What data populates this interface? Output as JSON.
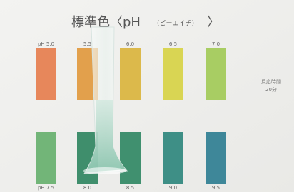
{
  "title": "標準色〈pH",
  "title_reading": "(ピーエイチ)",
  "title_close": "〉",
  "top_row": [
    {
      "label": "pH 5.0",
      "color": "#e7875b"
    },
    {
      "label": "5.5",
      "color": "#e2a04c"
    },
    {
      "label": "6.0",
      "color": "#dcb94b"
    },
    {
      "label": "6.5",
      "color": "#d9d553"
    },
    {
      "label": "7.0",
      "color": "#a8cd63"
    }
  ],
  "bottom_row": [
    {
      "label": "pH 7.5",
      "color": "#72b578"
    },
    {
      "label": "8.0",
      "color": "#3f8e6c"
    },
    {
      "label": "8.5",
      "color": "#40906f"
    },
    {
      "label": "9.0",
      "color": "#3e8f86"
    },
    {
      "label": "9.5",
      "color": "#3e8799"
    }
  ],
  "note": [
    "反応時間",
    "20分"
  ]
}
